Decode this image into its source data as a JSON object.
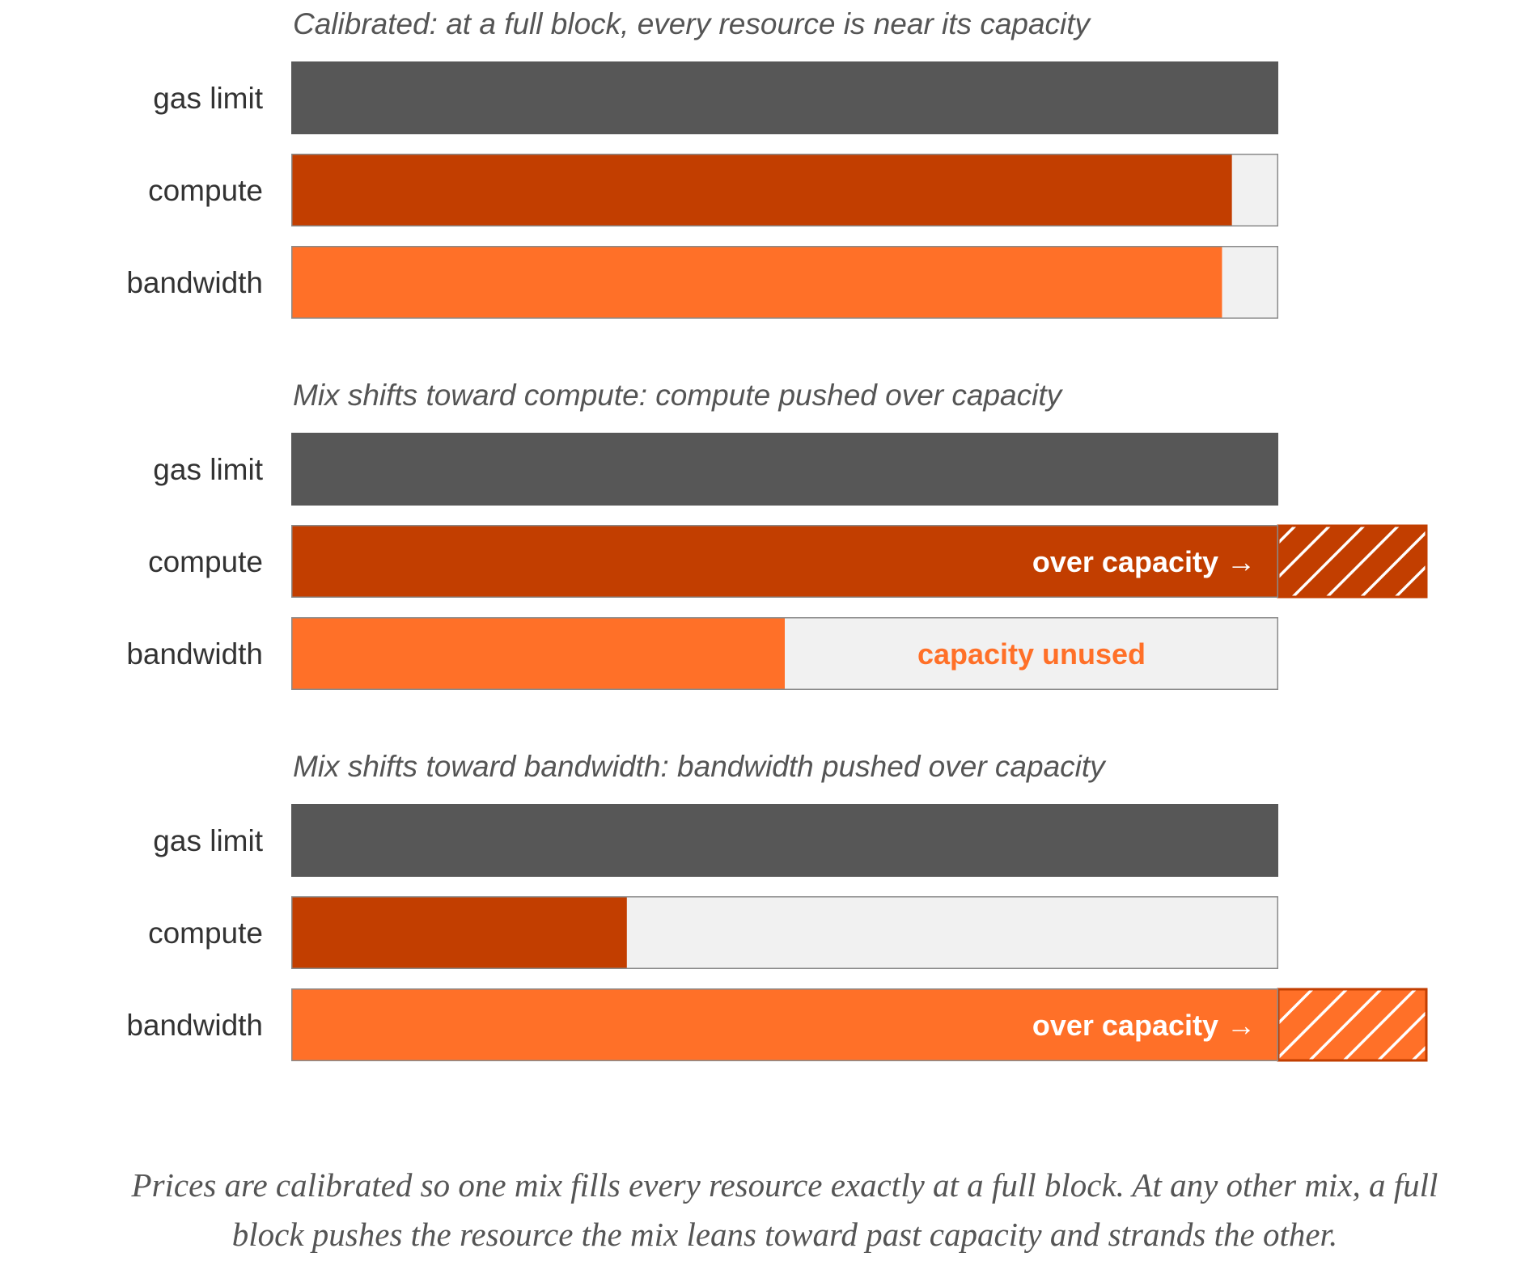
{
  "chart_data": {
    "type": "bar",
    "orientation": "horizontal",
    "capacity": 1.0,
    "colors": {
      "gas limit": "#575757",
      "compute": "#C23E00",
      "bandwidth": "#FF7028",
      "unused": "#F1F1F1",
      "outline": "#8A8A8A",
      "note_unused": "#FF7028"
    },
    "panels": [
      {
        "title": "Calibrated: at a full block, every resource is near its capacity",
        "bars": [
          {
            "category": "gas limit",
            "value": 1.0
          },
          {
            "category": "compute",
            "value": 0.953
          },
          {
            "category": "bandwidth",
            "value": 0.943
          }
        ]
      },
      {
        "title": "Mix shifts toward compute: compute pushed over capacity",
        "bars": [
          {
            "category": "gas limit",
            "value": 1.0
          },
          {
            "category": "compute",
            "value": 1.15,
            "note": "over capacity →",
            "over": true
          },
          {
            "category": "bandwidth",
            "value": 0.5,
            "note": "capacity unused"
          }
        ]
      },
      {
        "title": "Mix shifts toward bandwidth: bandwidth pushed over capacity",
        "bars": [
          {
            "category": "gas limit",
            "value": 1.0
          },
          {
            "category": "compute",
            "value": 0.34
          },
          {
            "category": "bandwidth",
            "value": 1.15,
            "note": "over capacity →",
            "over": true
          }
        ]
      }
    ]
  },
  "caption": "Prices are calibrated so one mix fills every resource exactly at a full block. At any other mix, a full block pushes the resource the mix leans toward past capacity and strands the other."
}
